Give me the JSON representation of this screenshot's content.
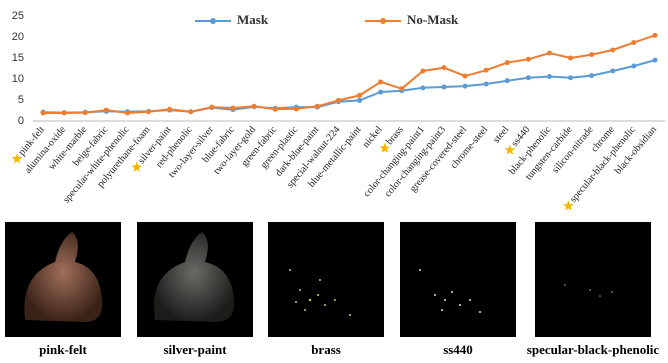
{
  "chart_data": {
    "type": "line",
    "categories": [
      "pink-felt",
      "alumina-oxide",
      "white-marble",
      "beige-fabric",
      "specular-white-phenolic",
      "polyurethane-foam",
      "silver-paint",
      "red-phenolic",
      "two-layer-silver",
      "blue-fabric",
      "two-layer-gold",
      "green-fabric",
      "green-plastic",
      "dark-blue-paint",
      "special-walnut-224",
      "blue-metallic-paint",
      "nickel",
      "brass",
      "color-changing-paint1",
      "color-changing-paint3",
      "grease-covered-steel",
      "chrome-steel",
      "steel",
      "ss440",
      "black-phenolic",
      "tungsten-carbide",
      "silicon-nitrade",
      "chrome",
      "specular-black-phenolic",
      "black-obsidian"
    ],
    "series": [
      {
        "name": "Mask",
        "color": "#5b9bd5",
        "values": [
          2.1,
          2.0,
          2.1,
          2.3,
          2.2,
          2.3,
          2.6,
          2.2,
          3.2,
          2.7,
          3.4,
          3.0,
          3.3,
          3.3,
          4.6,
          4.9,
          6.9,
          7.2,
          7.9,
          8.1,
          8.3,
          8.8,
          9.6,
          10.3,
          10.6,
          10.3,
          10.8,
          11.9,
          13.1,
          14.5
        ]
      },
      {
        "name": "No-Mask",
        "color": "#ed7d31",
        "values": [
          1.9,
          1.9,
          2.0,
          2.6,
          1.9,
          2.2,
          2.8,
          2.2,
          3.3,
          3.1,
          3.5,
          2.8,
          2.9,
          3.5,
          4.9,
          6.1,
          9.3,
          7.7,
          11.9,
          12.7,
          10.7,
          12.1,
          13.9,
          14.7,
          16.2,
          15.0,
          15.8,
          16.9,
          18.7,
          20.4
        ]
      }
    ],
    "ylim": [
      0,
      25
    ],
    "yticks": [
      0,
      5,
      10,
      15,
      20,
      25
    ],
    "grid": false,
    "legend": "top"
  },
  "panels": [
    {
      "caption": "pink-felt"
    },
    {
      "caption": "silver-paint"
    },
    {
      "caption": "brass"
    },
    {
      "caption": "ss440"
    },
    {
      "caption": "specular-black-phenolic"
    }
  ]
}
